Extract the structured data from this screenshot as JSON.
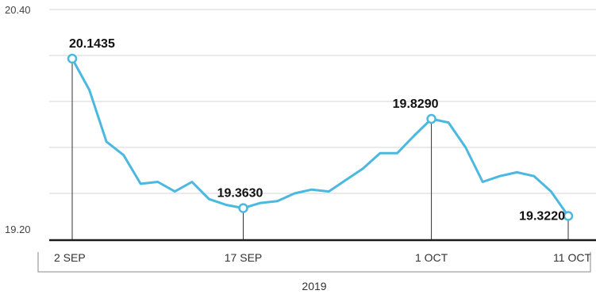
{
  "chart_data": {
    "type": "line",
    "line_color": "#4bb8df",
    "y_tick_labels": [
      "20.40",
      "19.20"
    ],
    "ylim": [
      19.2,
      20.4
    ],
    "x_tick_labels": [
      "2 SEP",
      "17 SEP",
      "1 OCT",
      "11 OCT"
    ],
    "xlabel": "2019",
    "grid": "horizontal",
    "series": [
      {
        "values": [
          20.1435,
          19.98,
          19.71,
          19.64,
          19.49,
          19.5,
          19.45,
          19.5,
          19.41,
          19.38,
          19.363,
          19.39,
          19.4,
          19.44,
          19.46,
          19.45,
          19.51,
          19.57,
          19.65,
          19.65,
          19.742,
          19.829,
          19.81,
          19.68,
          19.5,
          19.53,
          19.55,
          19.53,
          19.45,
          19.322
        ]
      }
    ],
    "annotations": [
      {
        "index": 0,
        "text": "20.1435"
      },
      {
        "index": 10,
        "text": "19.3630"
      },
      {
        "index": 21,
        "text": "19.8290"
      },
      {
        "index": 29,
        "text": "19.3220"
      }
    ],
    "x_tick_indices": [
      0,
      10,
      21,
      29
    ]
  }
}
